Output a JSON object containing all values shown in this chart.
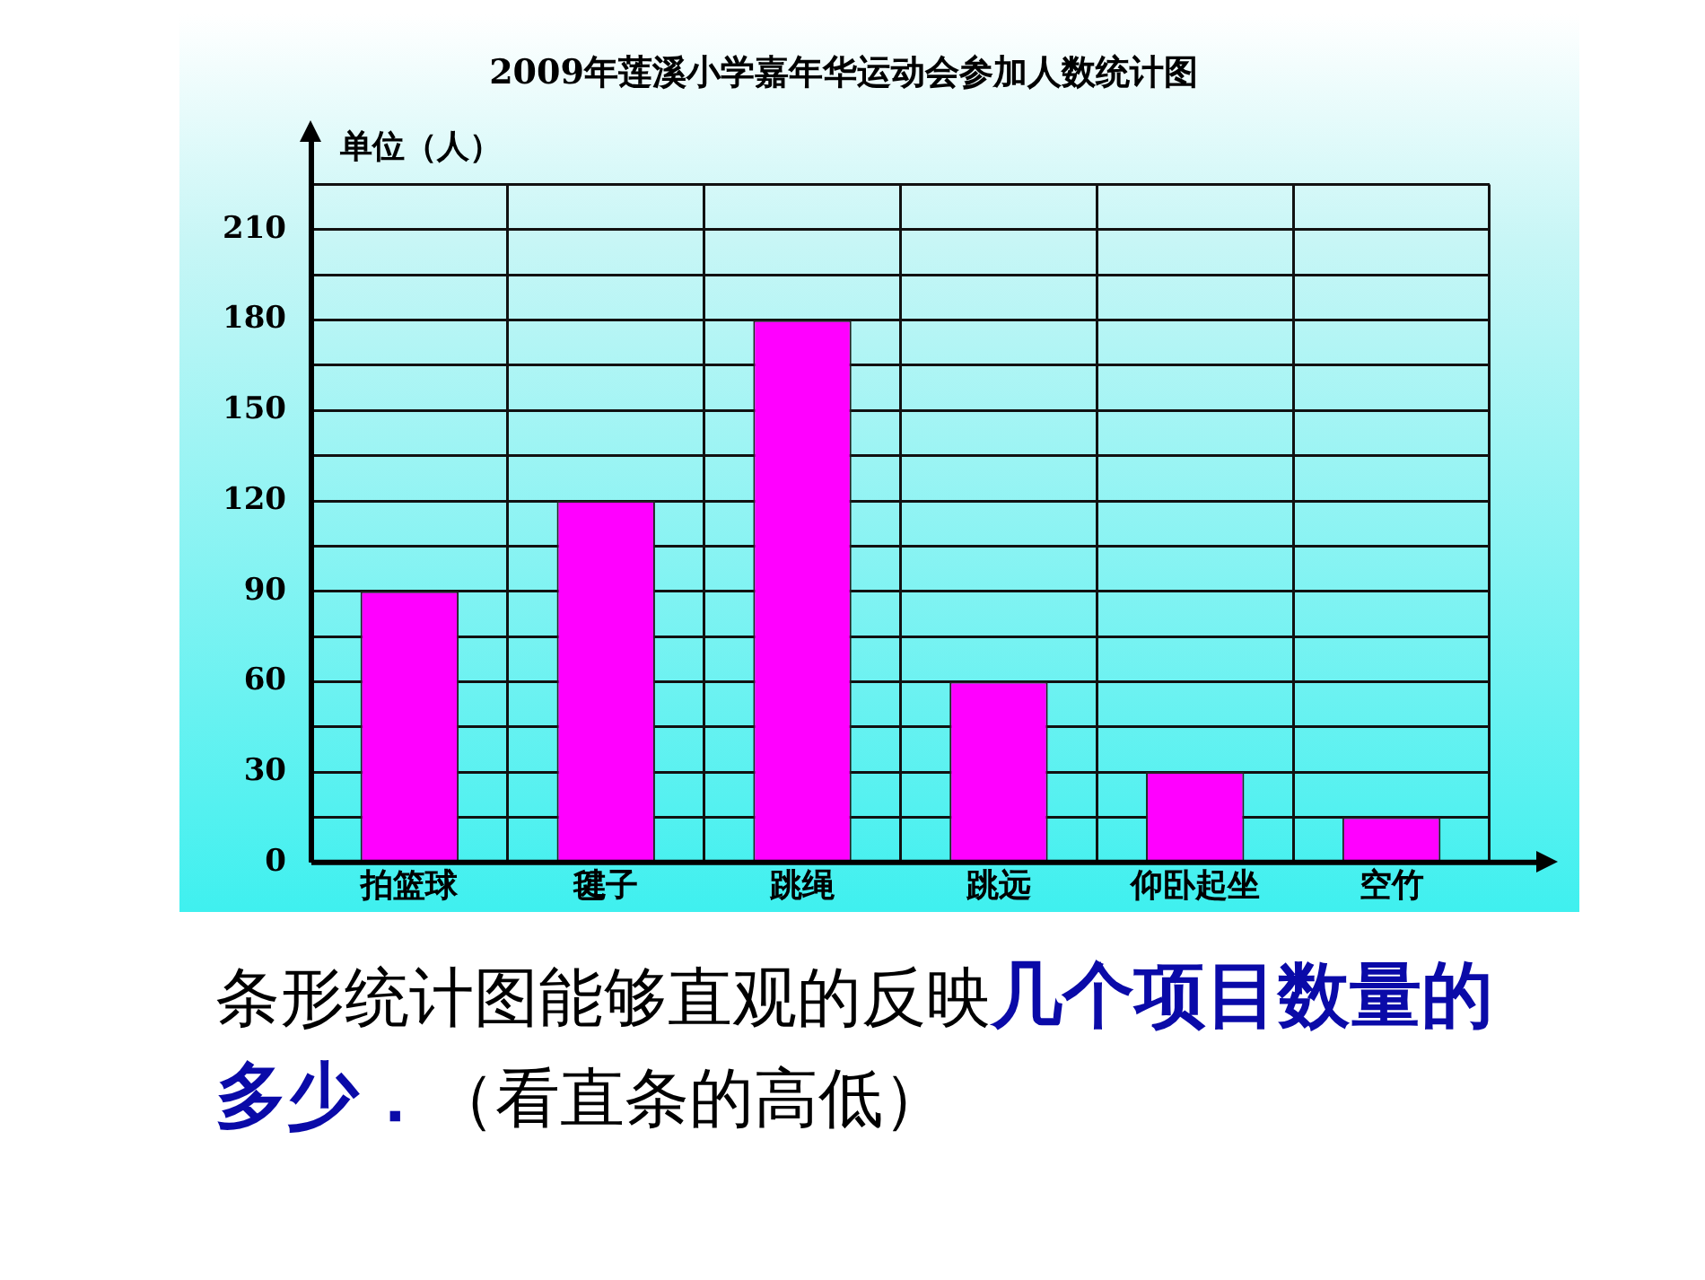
{
  "chart_data": {
    "type": "bar",
    "title": "2009年莲溪小学嘉年华运动会参加人数统计图",
    "ylabel": "单位（人）",
    "categories": [
      "拍篮球",
      "毽子",
      "跳绳",
      "跳远",
      "仰卧起坐",
      "空竹"
    ],
    "values": [
      90,
      120,
      180,
      60,
      30,
      15
    ],
    "color": "#ff00ff",
    "ylim": [
      0,
      225
    ],
    "yticks": [
      0,
      {
        "value": 15,
        "label": null
      },
      30,
      {
        "value": 45,
        "label": null
      },
      60,
      {
        "value": 75,
        "label": null
      },
      90,
      {
        "value": 105,
        "label": null
      },
      120,
      {
        "value": 135,
        "label": null
      },
      150,
      {
        "value": 165,
        "label": null
      },
      180,
      {
        "value": 195,
        "label": null
      },
      210,
      {
        "value": 225,
        "label": null
      }
    ],
    "grid": true,
    "annotations": [
      "条形统计图能够直观的反映",
      "几个项目数量的多少．",
      "（看直条的高低）"
    ]
  }
}
